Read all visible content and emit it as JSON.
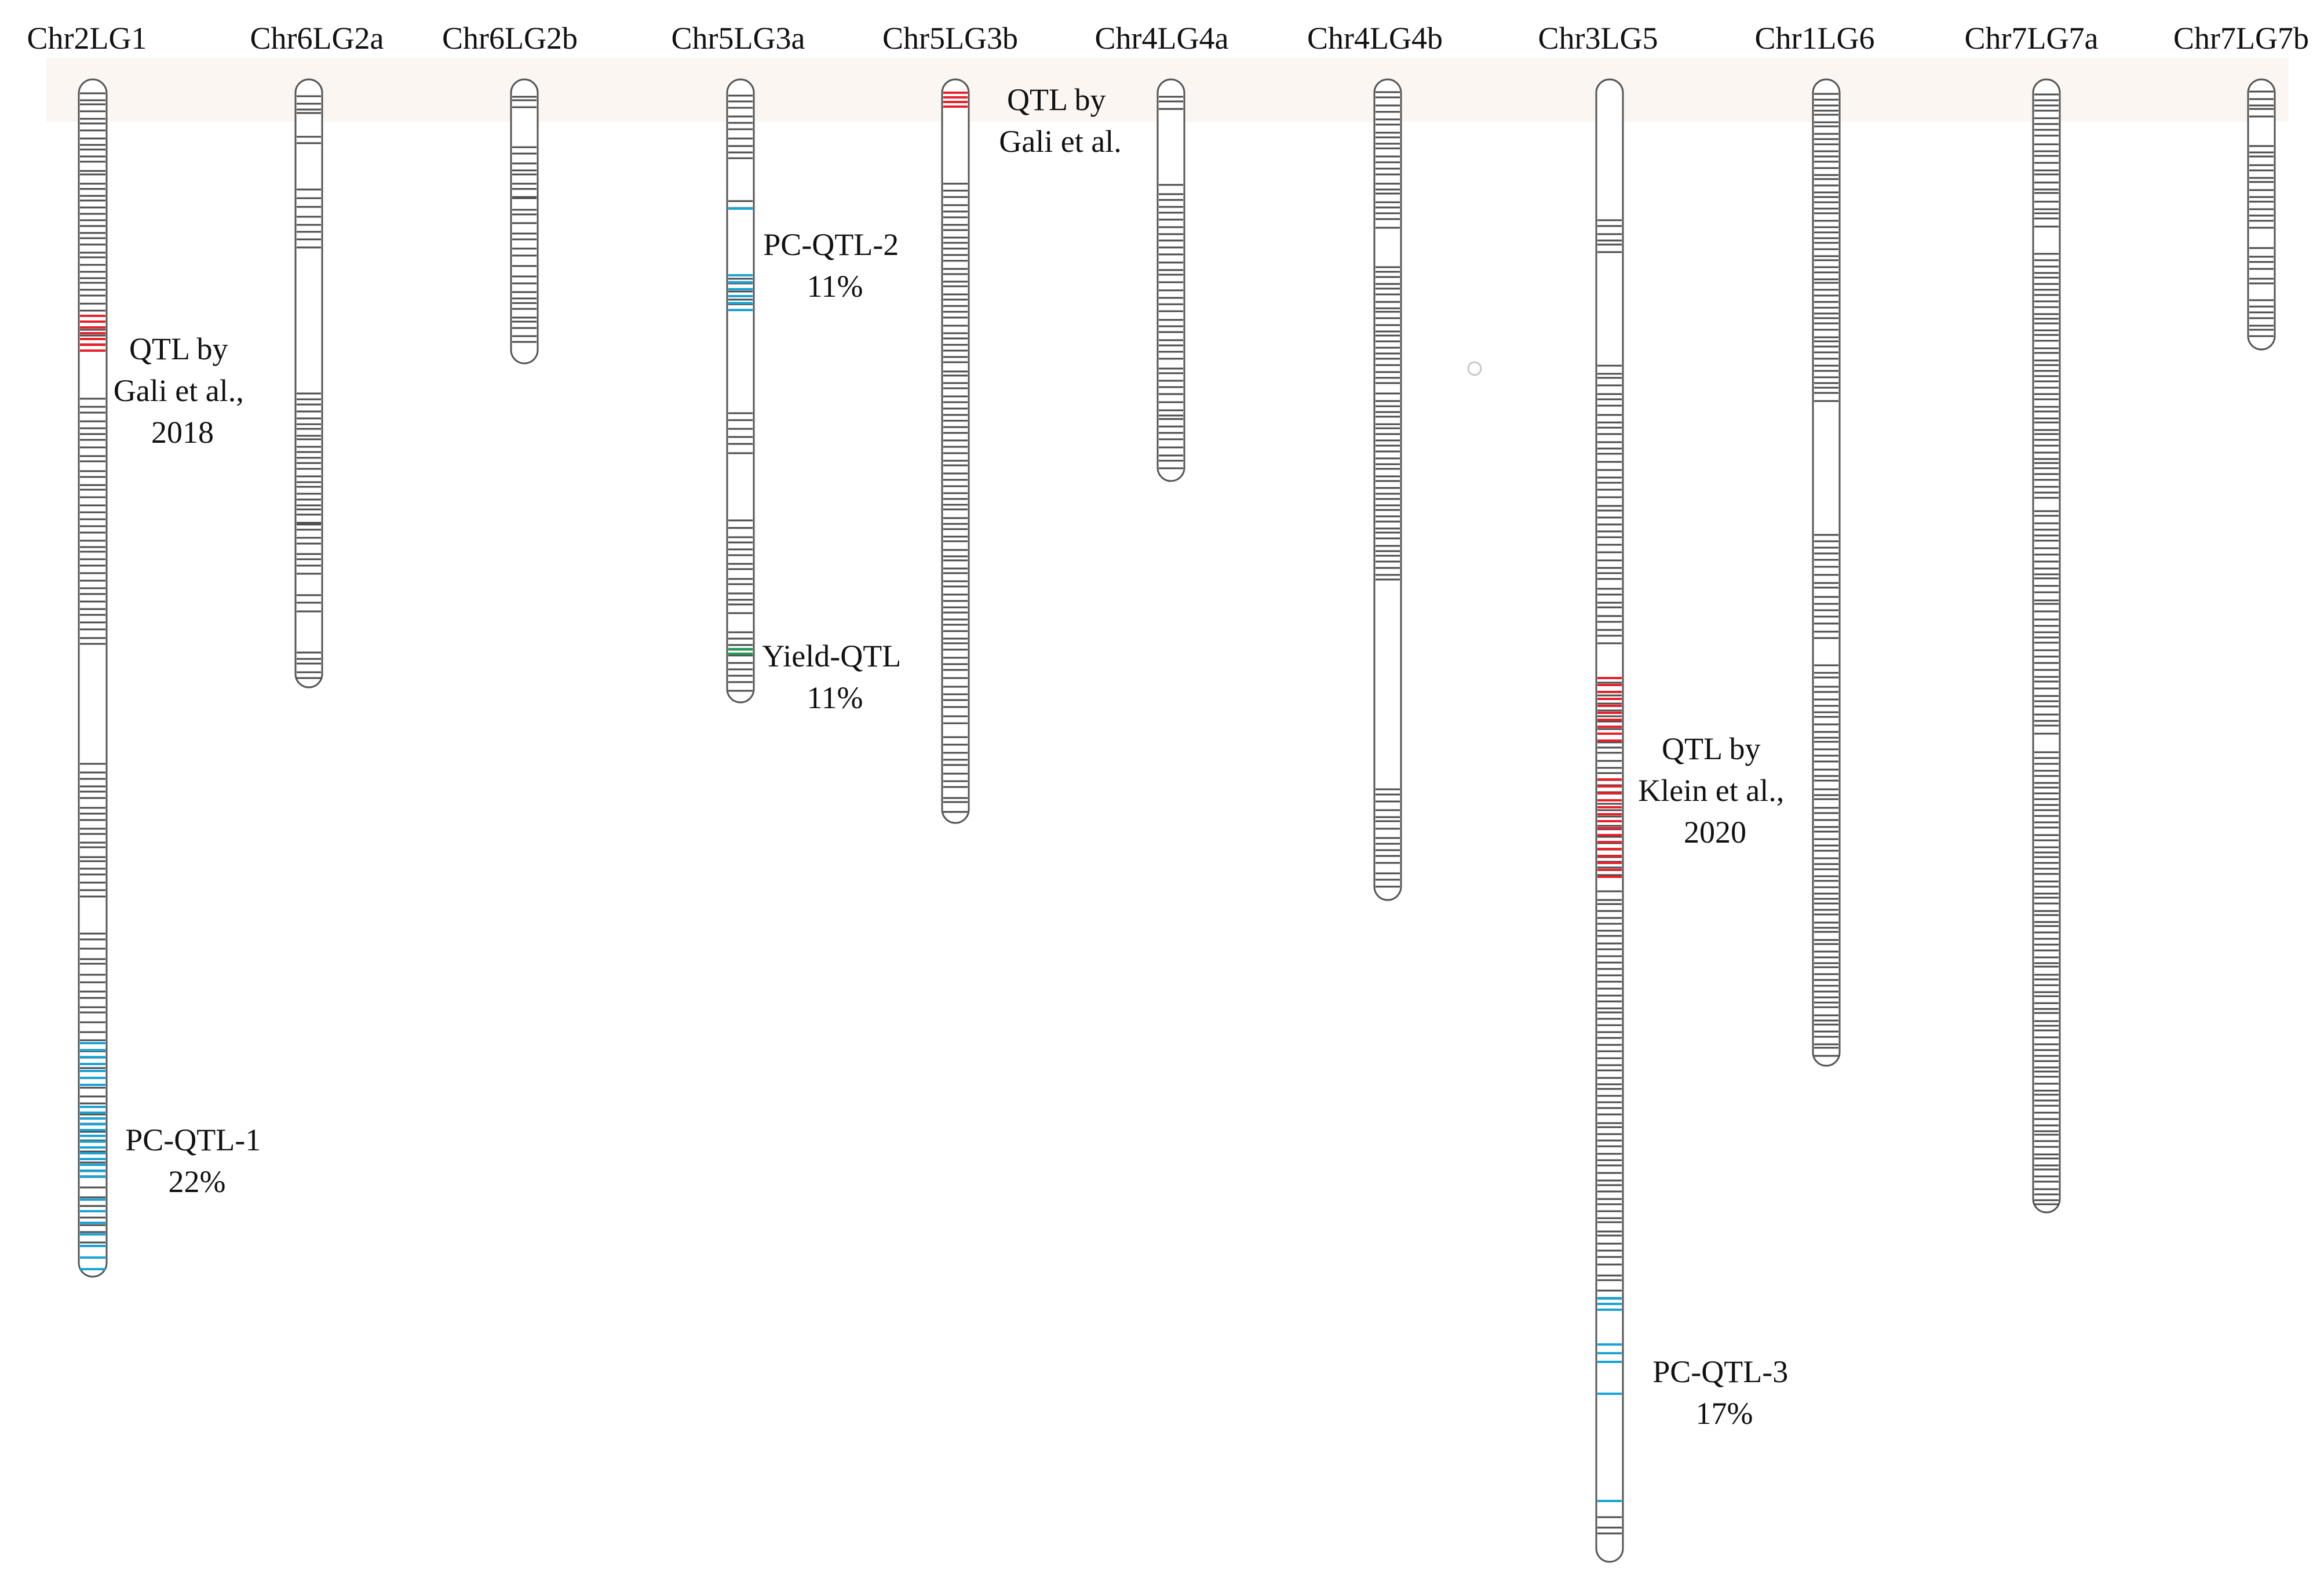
{
  "figure": {
    "colors": {
      "marker": "#4a4a4a",
      "qtl_literature": "#e8202a",
      "pc_qtl": "#1aa3d6",
      "yield_qtl": "#23a057",
      "outline": "#555555"
    }
  },
  "linkage_groups": [
    {
      "id": "Chr2LG1",
      "label": "Chr2LG1",
      "marker_density": "dense",
      "regions": [
        {
          "label": "QTL by Gali et al., 2018",
          "lines": [
            "QTL by",
            "Gali et al.,",
            "2018"
          ],
          "type": "qtl_literature"
        },
        {
          "label": "PC-QTL-1 22%",
          "lines": [
            "PC-QTL-1",
            "22%"
          ],
          "type": "pc_qtl"
        }
      ]
    },
    {
      "id": "Chr6LG2a",
      "label": "Chr6LG2a",
      "marker_density": "medium",
      "regions": []
    },
    {
      "id": "Chr6LG2b",
      "label": "Chr6LG2b",
      "marker_density": "medium",
      "regions": []
    },
    {
      "id": "Chr5LG3a",
      "label": "Chr5LG3a",
      "marker_density": "sparse",
      "regions": [
        {
          "label": "PC-QTL-2 11%",
          "lines": [
            "PC-QTL-2",
            "11%"
          ],
          "type": "pc_qtl"
        },
        {
          "label": "Yield-QTL 11%",
          "lines": [
            "Yield-QTL",
            "11%"
          ],
          "type": "yield_qtl"
        }
      ]
    },
    {
      "id": "Chr5LG3b",
      "label": "Chr5LG3b",
      "marker_density": "dense",
      "regions": [
        {
          "label": "QTL by Gali et al.",
          "lines": [
            "QTL by",
            "Gali et al."
          ],
          "type": "qtl_literature"
        }
      ]
    },
    {
      "id": "Chr4LG4a",
      "label": "Chr4LG4a",
      "marker_density": "medium",
      "regions": []
    },
    {
      "id": "Chr4LG4b",
      "label": "Chr4LG4b",
      "marker_density": "dense",
      "regions": []
    },
    {
      "id": "Chr3LG5",
      "label": "Chr3LG5",
      "marker_density": "dense",
      "regions": [
        {
          "label": "QTL by Klein et al., 2020",
          "lines": [
            "QTL by",
            "Klein et al.,",
            "2020"
          ],
          "type": "qtl_literature"
        },
        {
          "label": "PC-QTL-3 17%",
          "lines": [
            "PC-QTL-3",
            "17%"
          ],
          "type": "pc_qtl"
        }
      ]
    },
    {
      "id": "Chr1LG6",
      "label": "Chr1LG6",
      "marker_density": "dense",
      "regions": []
    },
    {
      "id": "Chr7LG7a",
      "label": "Chr7LG7a",
      "marker_density": "dense",
      "regions": []
    },
    {
      "id": "Chr7LG7b",
      "label": "Chr7LG7b",
      "marker_density": "medium",
      "regions": []
    }
  ]
}
